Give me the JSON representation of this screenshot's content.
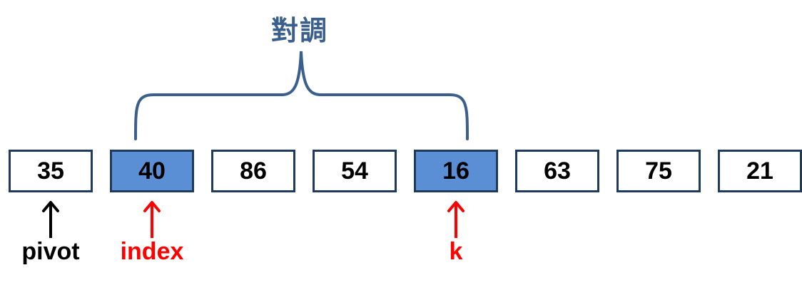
{
  "swap_label": "對調",
  "array": {
    "cells": [
      {
        "value": "35",
        "highlighted": false
      },
      {
        "value": "40",
        "highlighted": true
      },
      {
        "value": "86",
        "highlighted": false
      },
      {
        "value": "54",
        "highlighted": false
      },
      {
        "value": "16",
        "highlighted": true
      },
      {
        "value": "63",
        "highlighted": false
      },
      {
        "value": "75",
        "highlighted": false
      },
      {
        "value": "21",
        "highlighted": false
      }
    ]
  },
  "pointers": [
    {
      "label": "pivot",
      "cell_index": 0,
      "color": "#000000"
    },
    {
      "label": "index",
      "cell_index": 1,
      "color": "#ff0000"
    },
    {
      "label": "k",
      "cell_index": 4,
      "color": "#ff0000"
    }
  ],
  "colors": {
    "brace": "#3b5f8c",
    "cell_border": "#203a5c",
    "cell_highlight": "#5a8fd6"
  }
}
